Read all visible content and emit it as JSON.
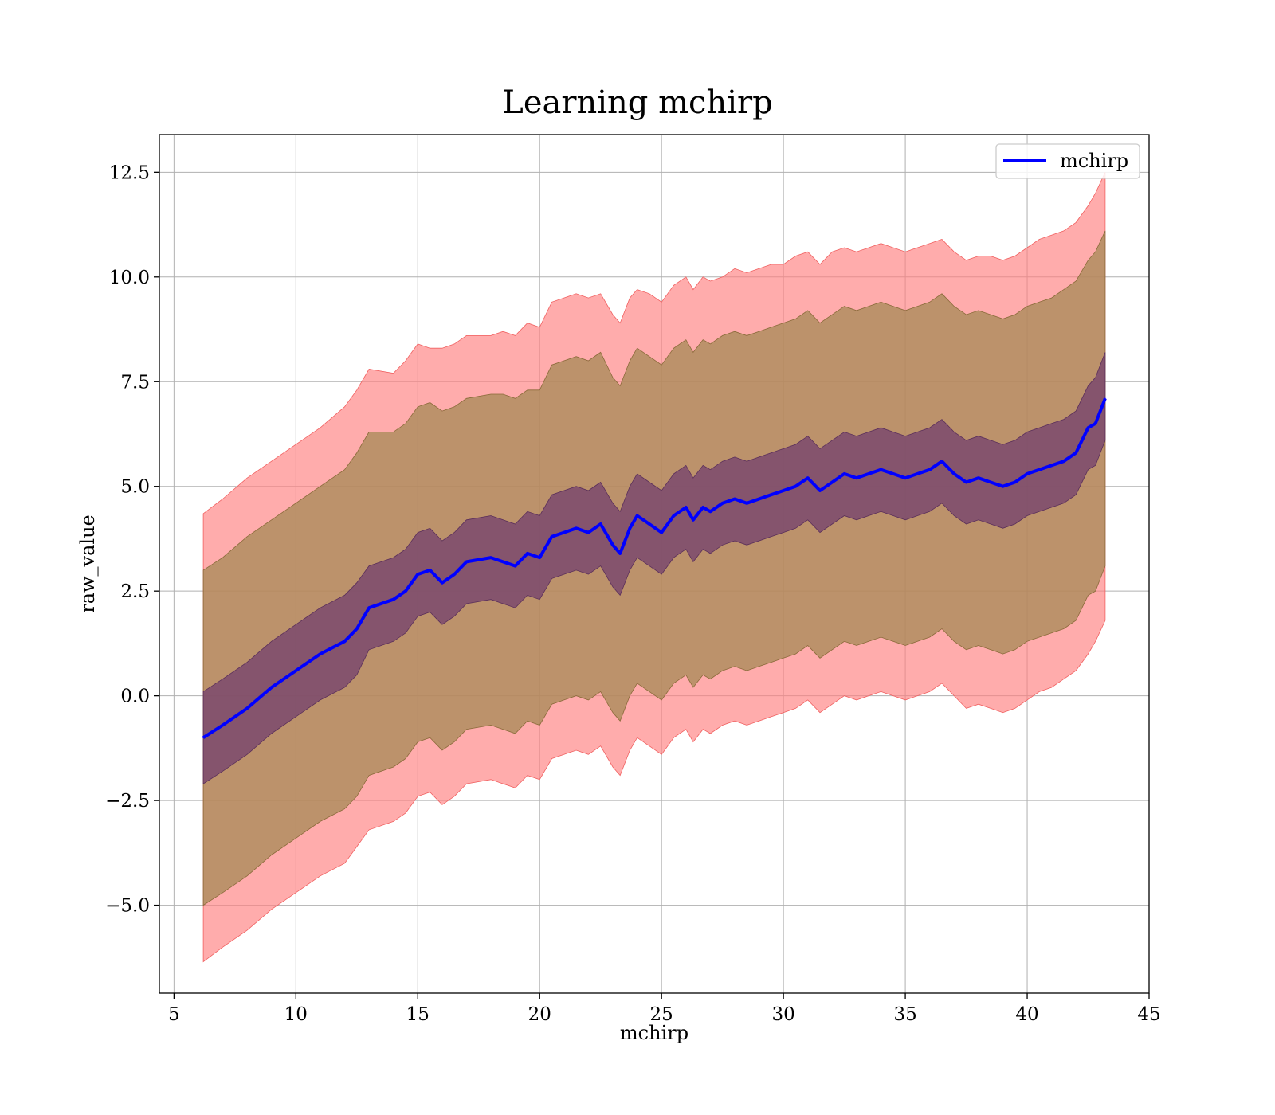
{
  "chart_data": {
    "type": "line",
    "title": "Learning mchirp",
    "xlabel": "mchirp",
    "ylabel": "raw_value",
    "xlim": [
      4.4,
      45
    ],
    "ylim": [
      -7.1,
      13.4
    ],
    "xticks": [
      5,
      10,
      15,
      20,
      25,
      30,
      35,
      40,
      45
    ],
    "xtick_labels": [
      "5",
      "10",
      "15",
      "20",
      "25",
      "30",
      "35",
      "40",
      "45"
    ],
    "yticks": [
      -5.0,
      -2.5,
      0.0,
      2.5,
      5.0,
      7.5,
      10.0,
      12.5
    ],
    "ytick_labels": [
      "−5.0",
      "−2.5",
      "0.0",
      "2.5",
      "5.0",
      "7.5",
      "10.0",
      "12.5"
    ],
    "grid": true,
    "legend": {
      "placement": "top-right",
      "entries": [
        {
          "label": "mchirp",
          "color": "#0000ff"
        }
      ]
    },
    "colors": {
      "line": "#0000ff",
      "band_outer": "#ff8080",
      "band_middle": "#a58a55",
      "band_inner": "#6e3b6e"
    },
    "x": [
      6.2,
      7.0,
      8.0,
      9.0,
      10.0,
      11.0,
      12.0,
      12.5,
      13.0,
      14.0,
      14.5,
      15.0,
      15.5,
      16.0,
      16.5,
      17.0,
      18.0,
      18.5,
      19.0,
      19.5,
      20.0,
      20.5,
      21.0,
      21.5,
      22.0,
      22.5,
      23.0,
      23.3,
      23.7,
      24.0,
      24.5,
      25.0,
      25.5,
      26.0,
      26.3,
      26.7,
      27.0,
      27.5,
      28.0,
      28.5,
      29.0,
      29.5,
      30.0,
      30.5,
      31.0,
      31.5,
      32.0,
      32.5,
      33.0,
      33.5,
      34.0,
      34.5,
      35.0,
      35.5,
      36.0,
      36.5,
      37.0,
      37.5,
      38.0,
      38.5,
      39.0,
      39.5,
      40.0,
      40.5,
      41.0,
      41.5,
      42.0,
      42.5,
      42.8,
      43.2
    ],
    "series": [
      {
        "name": "mchirp",
        "values": [
          -1.0,
          -0.7,
          -0.3,
          0.2,
          0.6,
          1.0,
          1.3,
          1.6,
          2.1,
          2.3,
          2.5,
          2.9,
          3.0,
          2.7,
          2.9,
          3.2,
          3.3,
          3.2,
          3.1,
          3.4,
          3.3,
          3.8,
          3.9,
          4.0,
          3.9,
          4.1,
          3.6,
          3.4,
          4.0,
          4.3,
          4.1,
          3.9,
          4.3,
          4.5,
          4.2,
          4.5,
          4.4,
          4.6,
          4.7,
          4.6,
          4.7,
          4.8,
          4.9,
          5.0,
          5.2,
          4.9,
          5.1,
          5.3,
          5.2,
          5.3,
          5.4,
          5.3,
          5.2,
          5.3,
          5.4,
          5.6,
          5.3,
          5.1,
          5.2,
          5.1,
          5.0,
          5.1,
          5.3,
          5.4,
          5.5,
          5.6,
          5.8,
          6.4,
          6.5,
          7.1
        ]
      }
    ],
    "bands": {
      "outer_upper": [
        4.35,
        4.7,
        5.2,
        5.6,
        6.0,
        6.4,
        6.9,
        7.3,
        7.8,
        7.7,
        8.0,
        8.4,
        8.3,
        8.3,
        8.4,
        8.6,
        8.6,
        8.7,
        8.6,
        8.9,
        8.8,
        9.4,
        9.5,
        9.6,
        9.5,
        9.6,
        9.1,
        8.9,
        9.5,
        9.7,
        9.6,
        9.4,
        9.8,
        10.0,
        9.7,
        10.0,
        9.9,
        10.0,
        10.2,
        10.1,
        10.2,
        10.3,
        10.3,
        10.5,
        10.6,
        10.3,
        10.6,
        10.7,
        10.6,
        10.7,
        10.8,
        10.7,
        10.6,
        10.7,
        10.8,
        10.9,
        10.6,
        10.4,
        10.5,
        10.5,
        10.4,
        10.5,
        10.7,
        10.9,
        11.0,
        11.1,
        11.3,
        11.7,
        12.0,
        12.5
      ],
      "middle_upper": [
        3.0,
        3.3,
        3.8,
        4.2,
        4.6,
        5.0,
        5.4,
        5.8,
        6.3,
        6.3,
        6.5,
        6.9,
        7.0,
        6.8,
        6.9,
        7.1,
        7.2,
        7.2,
        7.1,
        7.3,
        7.3,
        7.9,
        8.0,
        8.1,
        8.0,
        8.2,
        7.6,
        7.4,
        8.0,
        8.3,
        8.1,
        7.9,
        8.3,
        8.5,
        8.2,
        8.5,
        8.4,
        8.6,
        8.7,
        8.6,
        8.7,
        8.8,
        8.9,
        9.0,
        9.2,
        8.9,
        9.1,
        9.3,
        9.2,
        9.3,
        9.4,
        9.3,
        9.2,
        9.3,
        9.4,
        9.6,
        9.3,
        9.1,
        9.2,
        9.1,
        9.0,
        9.1,
        9.3,
        9.4,
        9.5,
        9.7,
        9.9,
        10.4,
        10.6,
        11.1
      ],
      "inner_upper": [
        0.1,
        0.4,
        0.8,
        1.3,
        1.7,
        2.1,
        2.4,
        2.7,
        3.1,
        3.3,
        3.5,
        3.9,
        4.0,
        3.7,
        3.9,
        4.2,
        4.3,
        4.2,
        4.1,
        4.4,
        4.3,
        4.8,
        4.9,
        5.0,
        4.9,
        5.1,
        4.6,
        4.4,
        5.0,
        5.3,
        5.1,
        4.9,
        5.3,
        5.5,
        5.2,
        5.5,
        5.4,
        5.6,
        5.7,
        5.6,
        5.7,
        5.8,
        5.9,
        6.0,
        6.2,
        5.9,
        6.1,
        6.3,
        6.2,
        6.3,
        6.4,
        6.3,
        6.2,
        6.3,
        6.4,
        6.6,
        6.3,
        6.1,
        6.2,
        6.1,
        6.0,
        6.1,
        6.3,
        6.4,
        6.5,
        6.6,
        6.8,
        7.4,
        7.6,
        8.2
      ],
      "inner_lower": [
        -2.1,
        -1.8,
        -1.4,
        -0.9,
        -0.5,
        -0.1,
        0.2,
        0.5,
        1.1,
        1.3,
        1.5,
        1.9,
        2.0,
        1.7,
        1.9,
        2.2,
        2.3,
        2.2,
        2.1,
        2.4,
        2.3,
        2.8,
        2.9,
        3.0,
        2.9,
        3.1,
        2.6,
        2.4,
        3.0,
        3.3,
        3.1,
        2.9,
        3.3,
        3.5,
        3.2,
        3.5,
        3.4,
        3.6,
        3.7,
        3.6,
        3.7,
        3.8,
        3.9,
        4.0,
        4.2,
        3.9,
        4.1,
        4.3,
        4.2,
        4.3,
        4.4,
        4.3,
        4.2,
        4.3,
        4.4,
        4.6,
        4.3,
        4.1,
        4.2,
        4.1,
        4.0,
        4.1,
        4.3,
        4.4,
        4.5,
        4.6,
        4.8,
        5.4,
        5.5,
        6.1
      ],
      "middle_lower": [
        -5.0,
        -4.7,
        -4.3,
        -3.8,
        -3.4,
        -3.0,
        -2.7,
        -2.4,
        -1.9,
        -1.7,
        -1.5,
        -1.1,
        -1.0,
        -1.3,
        -1.1,
        -0.8,
        -0.7,
        -0.8,
        -0.9,
        -0.6,
        -0.7,
        -0.2,
        -0.1,
        0.0,
        -0.1,
        0.1,
        -0.4,
        -0.6,
        0.0,
        0.3,
        0.1,
        -0.1,
        0.3,
        0.5,
        0.2,
        0.5,
        0.4,
        0.6,
        0.7,
        0.6,
        0.7,
        0.8,
        0.9,
        1.0,
        1.2,
        0.9,
        1.1,
        1.3,
        1.2,
        1.3,
        1.4,
        1.3,
        1.2,
        1.3,
        1.4,
        1.6,
        1.3,
        1.1,
        1.2,
        1.1,
        1.0,
        1.1,
        1.3,
        1.4,
        1.5,
        1.6,
        1.8,
        2.4,
        2.5,
        3.1
      ],
      "outer_lower": [
        -6.35,
        -6.0,
        -5.6,
        -5.1,
        -4.7,
        -4.3,
        -4.0,
        -3.6,
        -3.2,
        -3.0,
        -2.8,
        -2.4,
        -2.3,
        -2.6,
        -2.4,
        -2.1,
        -2.0,
        -2.1,
        -2.2,
        -1.9,
        -2.0,
        -1.5,
        -1.4,
        -1.3,
        -1.4,
        -1.2,
        -1.7,
        -1.9,
        -1.3,
        -1.0,
        -1.2,
        -1.4,
        -1.0,
        -0.8,
        -1.1,
        -0.8,
        -0.9,
        -0.7,
        -0.6,
        -0.7,
        -0.6,
        -0.5,
        -0.4,
        -0.3,
        -0.1,
        -0.4,
        -0.2,
        0.0,
        -0.1,
        0.0,
        0.1,
        0.0,
        -0.1,
        0.0,
        0.1,
        0.3,
        0.0,
        -0.3,
        -0.2,
        -0.3,
        -0.4,
        -0.3,
        -0.1,
        0.1,
        0.2,
        0.4,
        0.6,
        1.0,
        1.3,
        1.8
      ]
    }
  }
}
